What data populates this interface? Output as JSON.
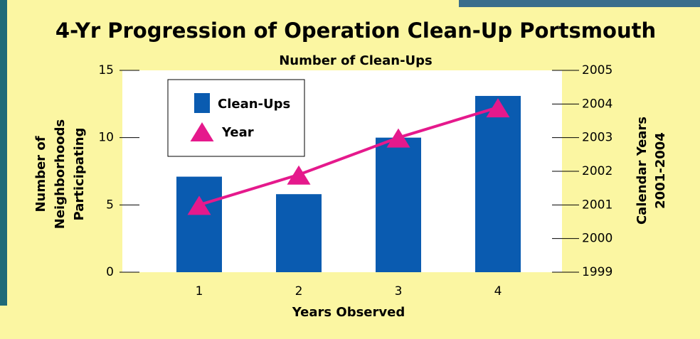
{
  "chart_data": {
    "type": "bar_line",
    "title": "4-Yr Progression of Operation Clean-Up Portsmouth",
    "subtitle": "Number of Clean-Ups",
    "xlabel": "Years Observed",
    "ylabel": [
      "Number of",
      "Neighborhoods",
      "Participating"
    ],
    "y2label": [
      "Calendar Years",
      "2001-2004"
    ],
    "categories": [
      "1",
      "2",
      "3",
      "4"
    ],
    "series": [
      {
        "name": "Clean-Ups",
        "type": "bar",
        "color": "#0a5bb0",
        "values": [
          7.1,
          5.8,
          10,
          13.1
        ]
      },
      {
        "name": "Year",
        "type": "line",
        "axis": "y2",
        "color": "#e5198c",
        "values": [
          2001,
          2001.9,
          2003,
          2003.9
        ]
      }
    ],
    "ylim": [
      0,
      15
    ],
    "yticks": [
      0,
      5,
      10,
      15
    ],
    "y2lim": [
      1999,
      2005
    ],
    "y2ticks": [
      1999,
      2000,
      2001,
      2002,
      2003,
      2004,
      2005
    ]
  }
}
